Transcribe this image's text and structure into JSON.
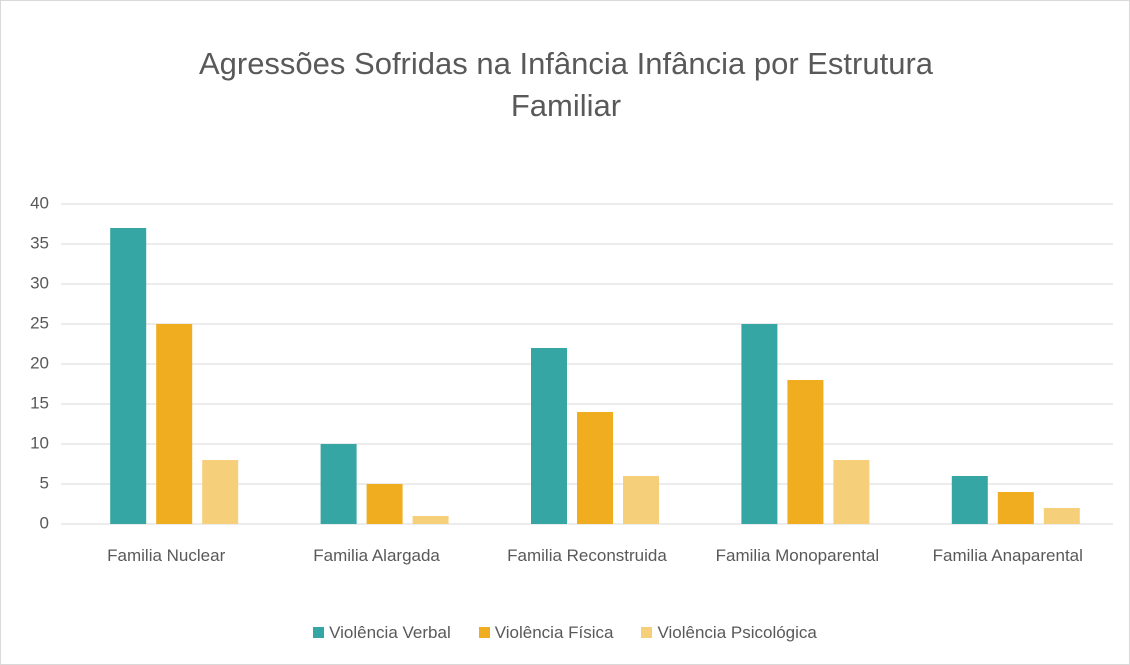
{
  "chart_data": {
    "type": "bar",
    "title": "Agressões Sofridas na Infância Infância por Estrutura Familiar",
    "categories": [
      "Familia Nuclear",
      "Familia Alargada",
      "Familia Reconstruida",
      "Familia Monoparental",
      "Familia Anaparental"
    ],
    "series": [
      {
        "name": "Violência Verbal",
        "color": "#35a6a3",
        "values": [
          37,
          10,
          22,
          25,
          6
        ]
      },
      {
        "name": "Violência Física",
        "color": "#f0ad1f",
        "values": [
          25,
          5,
          14,
          18,
          4
        ]
      },
      {
        "name": "Violência Psicológica",
        "color": "#f5cf7a",
        "values": [
          8,
          1,
          6,
          8,
          2
        ]
      }
    ],
    "ylim": [
      0,
      40
    ],
    "yticks": [
      0,
      5,
      10,
      15,
      20,
      25,
      30,
      35,
      40
    ],
    "grid": true,
    "legend": "bottom"
  }
}
